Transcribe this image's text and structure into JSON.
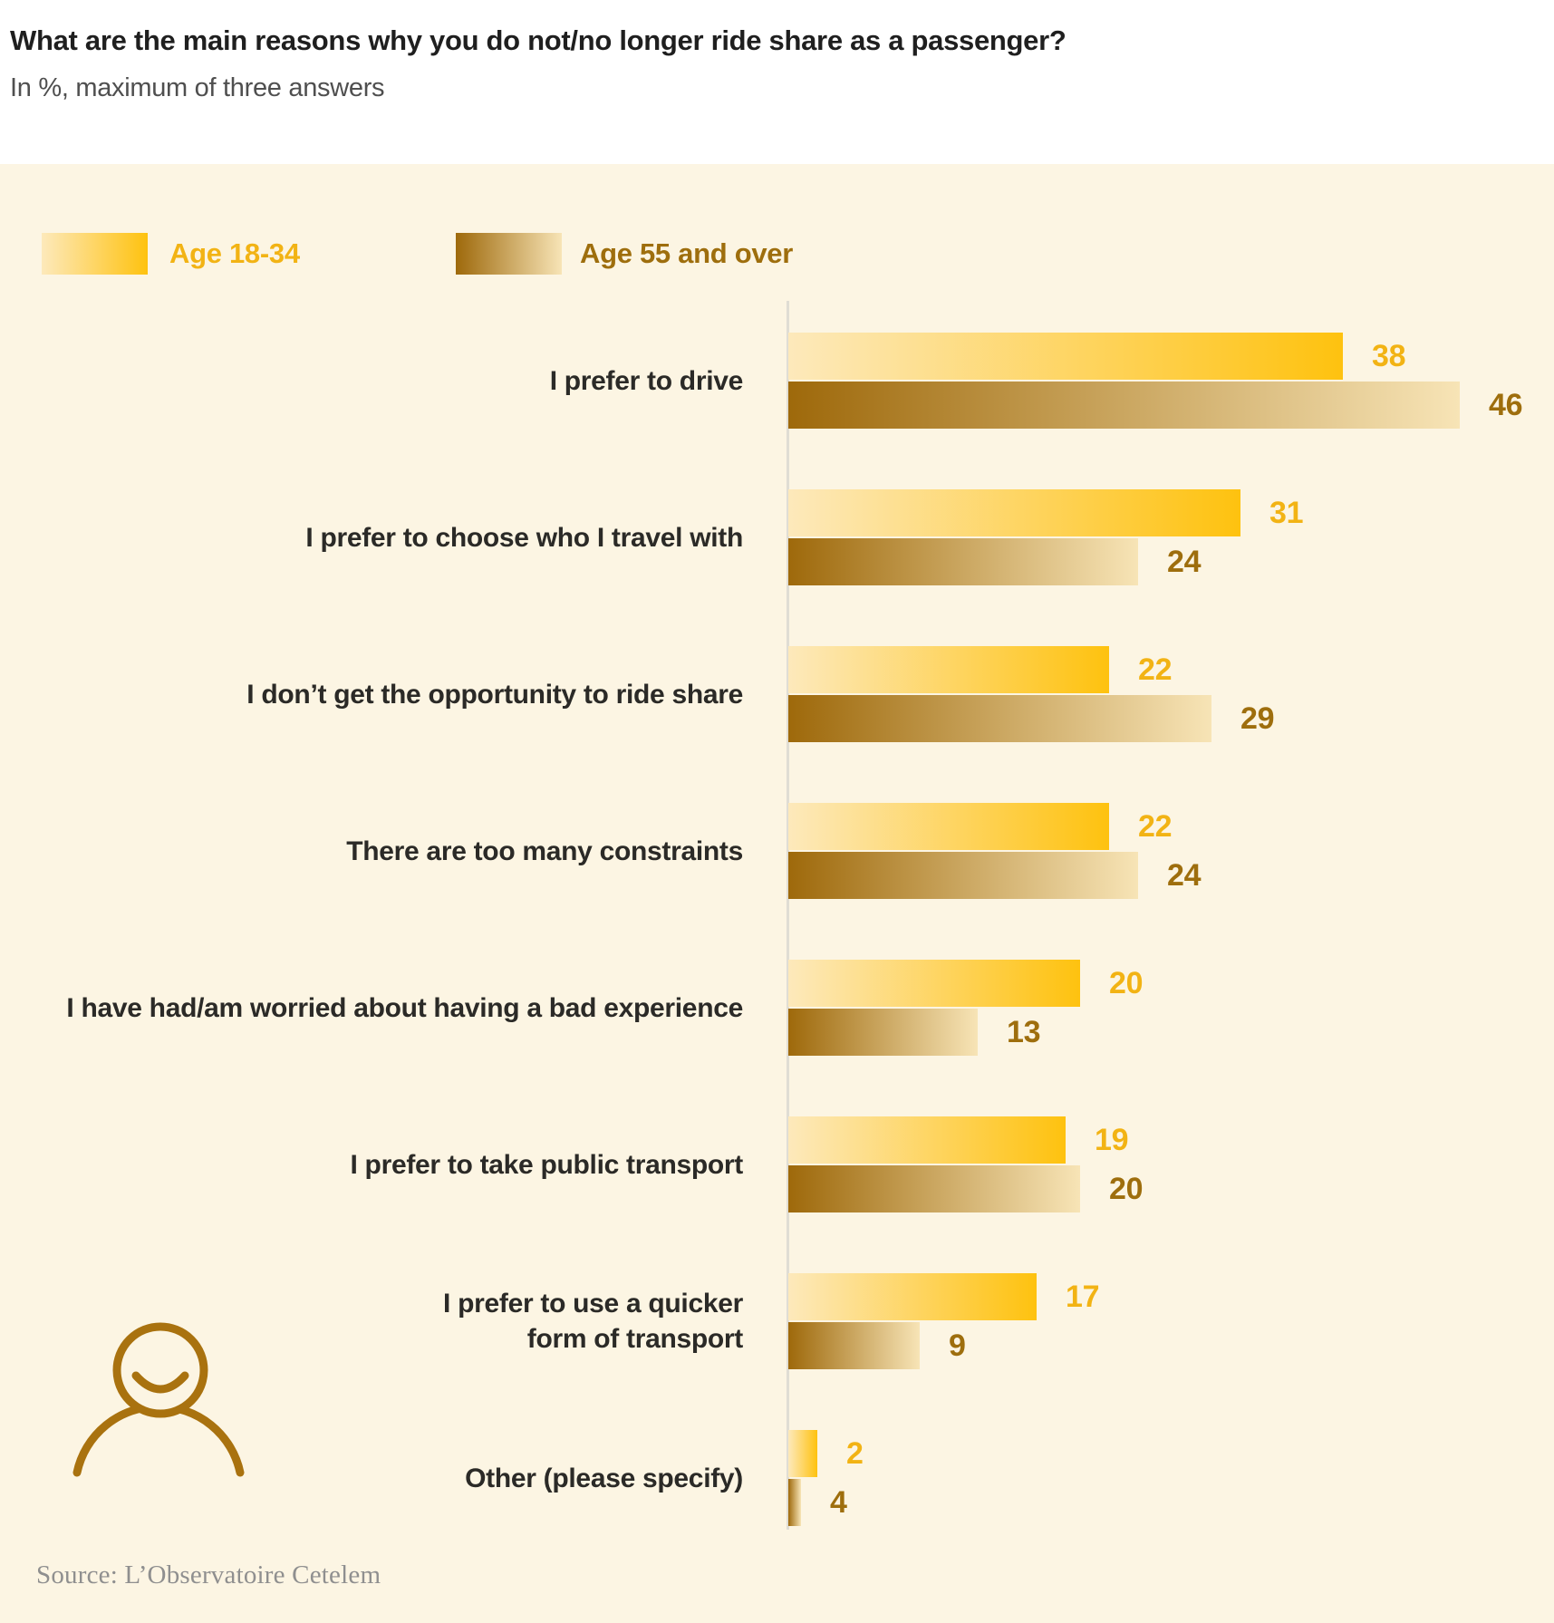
{
  "header": {
    "title": "What are the main reasons why you do not/no longer ride share as a passenger?",
    "subtitle": "In %, maximum of three answers"
  },
  "legend": {
    "items": [
      {
        "label": "Age 18-34"
      },
      {
        "label": "Age 55 and over"
      }
    ]
  },
  "source": "Source: L’Observatoire Cetelem",
  "colors": {
    "panel_background": "#FCF5E3",
    "young_accent": "#F2B314",
    "old_accent": "#9E6E0D",
    "young_gradient_start": "#FDE9BB",
    "young_gradient_end": "#FEC20F",
    "old_gradient_start": "#9E690B",
    "old_gradient_end": "#F7E4B6",
    "icon_stroke": "#A9720F"
  },
  "chart_data": {
    "type": "bar",
    "orientation": "horizontal",
    "unit": "%",
    "title": "What are the main reasons why you do not/no longer ride share as a passenger?",
    "subtitle": "In %, maximum of three answers",
    "legend_position": "top",
    "grid": false,
    "xlim": [
      0,
      52
    ],
    "categories": [
      "I prefer to drive",
      "I prefer to choose who I travel with",
      "I don’t get the opportunity to ride share",
      "There are too many constraints",
      "I have had/am worried about having a bad experience",
      "I prefer to take public transport",
      "I prefer to use a quicker\nform of transport",
      "Other (please specify)"
    ],
    "series": [
      {
        "name": "Age 18-34",
        "values": [
          38,
          31,
          22,
          22,
          20,
          19,
          17,
          2
        ]
      },
      {
        "name": "Age 55 and over",
        "values": [
          46,
          24,
          29,
          24,
          13,
          20,
          9,
          4
        ]
      }
    ]
  }
}
